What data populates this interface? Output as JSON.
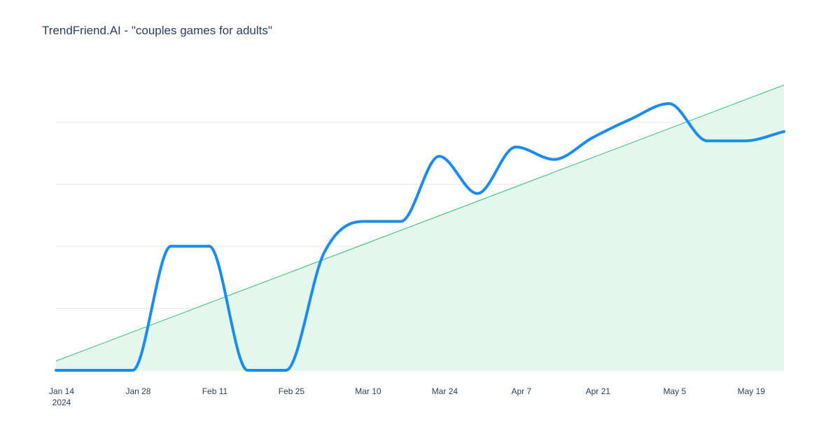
{
  "title": "TrendFriend.AI - \"couples games for adults\"",
  "colors": {
    "line": "#1a8cf0",
    "trend_line": "#2fbf71",
    "trend_fill": "#e3f7ec",
    "grid": "#e6e6e6",
    "text": "#2a3f5f"
  },
  "chart_data": {
    "type": "line",
    "title": "TrendFriend.AI - \"couples games for adults\"",
    "xlabel": "",
    "ylabel": "",
    "x_tick_labels": [
      "Jan 14",
      "Jan 28",
      "Feb 11",
      "Feb 25",
      "Mar 10",
      "Mar 24",
      "Apr 7",
      "Apr 21",
      "May 5",
      "May 19"
    ],
    "x_tick_year": "2024",
    "y_tick_labels_visible": false,
    "ylim": [
      0,
      100
    ],
    "grid": true,
    "series": [
      {
        "style": "smooth-thick",
        "x": [
          "2024-01-14",
          "2024-01-21",
          "2024-01-28",
          "2024-02-04",
          "2024-02-11",
          "2024-02-18",
          "2024-02-25",
          "2024-03-03",
          "2024-03-10",
          "2024-03-17",
          "2024-03-24",
          "2024-03-31",
          "2024-04-07",
          "2024-04-14",
          "2024-04-21",
          "2024-04-28",
          "2024-05-05",
          "2024-05-12",
          "2024-05-19",
          "2024-05-26"
        ],
        "values": [
          0,
          0,
          0,
          40,
          40,
          0,
          0,
          38,
          48,
          48,
          69,
          57,
          72,
          68,
          75,
          81,
          86,
          74,
          74,
          77
        ]
      },
      {
        "style": "linear-trend-filled",
        "x": [
          "2024-01-14",
          "2024-05-26"
        ],
        "values": [
          3,
          92
        ]
      }
    ]
  }
}
